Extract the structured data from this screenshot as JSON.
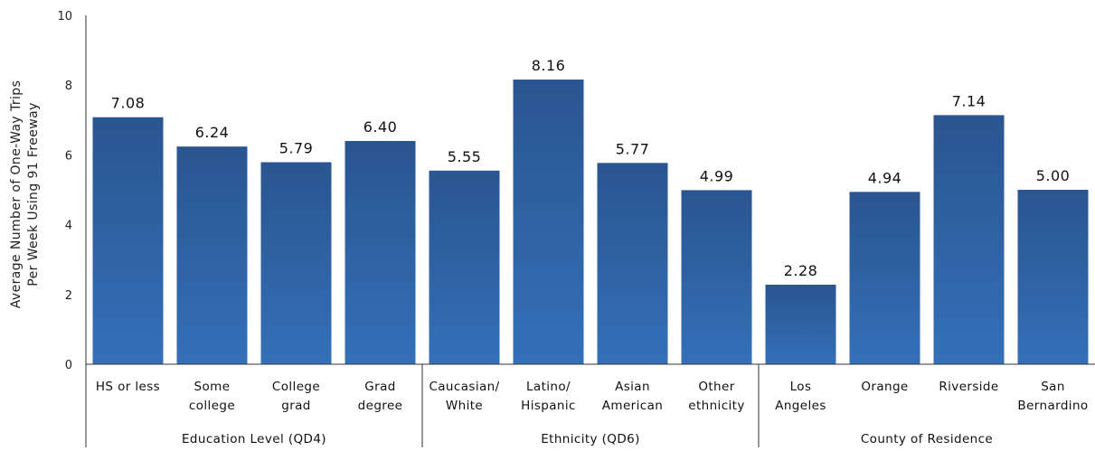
{
  "chart_data": {
    "type": "bar",
    "ylabel_lines": [
      "Average Number of One-Way Trips",
      "Per Week Using 91 Freeway"
    ],
    "ylim": [
      0,
      10
    ],
    "yticks": [
      "0",
      "2",
      "4",
      "6",
      "8",
      "10"
    ],
    "grid": false,
    "bar_color": "#2e5f9e",
    "categories": [
      {
        "label": [
          "HS or less"
        ],
        "value": 7.08,
        "value_label": "7.08"
      },
      {
        "label": [
          "Some",
          "college"
        ],
        "value": 6.24,
        "value_label": "6.24"
      },
      {
        "label": [
          "College",
          "grad"
        ],
        "value": 5.79,
        "value_label": "5.79"
      },
      {
        "label": [
          "Grad",
          "degree"
        ],
        "value": 6.4,
        "value_label": "6.40"
      },
      {
        "label": [
          "Caucasian/",
          "White"
        ],
        "value": 5.55,
        "value_label": "5.55"
      },
      {
        "label": [
          "Latino/",
          "Hispanic"
        ],
        "value": 8.16,
        "value_label": "8.16"
      },
      {
        "label": [
          "Asian",
          "American"
        ],
        "value": 5.77,
        "value_label": "5.77"
      },
      {
        "label": [
          "Other",
          "ethnicity"
        ],
        "value": 4.99,
        "value_label": "4.99"
      },
      {
        "label": [
          "Los",
          "Angeles"
        ],
        "value": 2.28,
        "value_label": "2.28"
      },
      {
        "label": [
          "Orange"
        ],
        "value": 4.94,
        "value_label": "4.94"
      },
      {
        "label": [
          "Riverside"
        ],
        "value": 7.14,
        "value_label": "7.14"
      },
      {
        "label": [
          "San",
          "Bernardino"
        ],
        "value": 5.0,
        "value_label": "5.00"
      }
    ],
    "groups": [
      {
        "label": "Education Level (QD4)",
        "start": 0,
        "count": 4
      },
      {
        "label": "Ethnicity (QD6)",
        "start": 4,
        "count": 4
      },
      {
        "label": "County of Residence",
        "start": 8,
        "count": 4
      }
    ]
  }
}
